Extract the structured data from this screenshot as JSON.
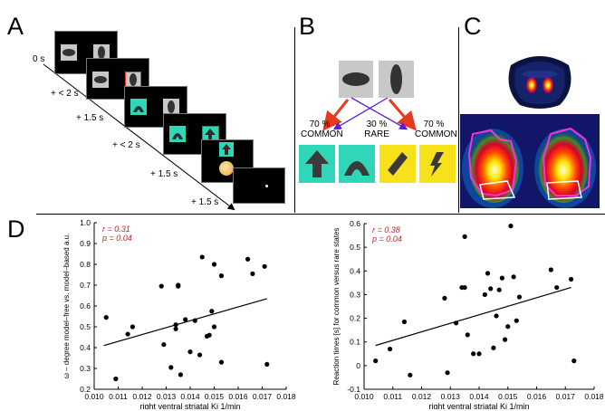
{
  "panels": {
    "a": "A",
    "b": "B",
    "c": "C",
    "d": "D"
  },
  "timeline": [
    "0 s",
    "+ < 2 s",
    "+ 1.5 s",
    "+ < 2 s",
    "+ 1.5 s",
    "+ 1.5 s"
  ],
  "panel_b": {
    "left_pct": "70 %",
    "left_label": "COMMON",
    "mid_pct": "30 %",
    "mid_label": "RARE",
    "right_pct": "70 %",
    "right_label": "COMMON"
  },
  "colors": {
    "teal": "#2fd6b8",
    "yellow": "#f7e11b",
    "red_arrow": "#e8391d",
    "blue_arrow": "#5a1fd6",
    "annotation": "#c0282d"
  },
  "chart_data": [
    {
      "type": "scatter",
      "xlabel": "right ventral striatal Ki 1/min",
      "ylabel": "ω – degree model–free vs. model–based a.u.",
      "annotation_r": "r = 0.31",
      "annotation_p": "p = 0.04",
      "xlim": [
        0.01,
        0.018
      ],
      "ylim": [
        0.2,
        1.0
      ],
      "xticks": [
        "0.010",
        "0.011",
        "0.012",
        "0.013",
        "0.014",
        "0.015",
        "0.016",
        "0.017",
        "0.018"
      ],
      "yticks": [
        "0.2",
        "0.3",
        "0.4",
        "0.5",
        "0.6",
        "0.7",
        "0.8",
        "0.9",
        "1.0"
      ],
      "points": [
        [
          0.0105,
          0.545
        ],
        [
          0.0109,
          0.25
        ],
        [
          0.0114,
          0.465
        ],
        [
          0.0116,
          0.5
        ],
        [
          0.0128,
          0.695
        ],
        [
          0.0129,
          0.415
        ],
        [
          0.0132,
          0.305
        ],
        [
          0.0134,
          0.49
        ],
        [
          0.0134,
          0.51
        ],
        [
          0.0135,
          0.7
        ],
        [
          0.0135,
          0.695
        ],
        [
          0.0136,
          0.27
        ],
        [
          0.0138,
          0.535
        ],
        [
          0.014,
          0.38
        ],
        [
          0.0142,
          0.53
        ],
        [
          0.0144,
          0.365
        ],
        [
          0.0145,
          0.835
        ],
        [
          0.0147,
          0.455
        ],
        [
          0.0148,
          0.46
        ],
        [
          0.0149,
          0.575
        ],
        [
          0.015,
          0.5
        ],
        [
          0.015,
          0.8
        ],
        [
          0.0153,
          0.745
        ],
        [
          0.0153,
          0.33
        ],
        [
          0.0164,
          0.825
        ],
        [
          0.0166,
          0.755
        ],
        [
          0.0171,
          0.79
        ],
        [
          0.0172,
          0.32
        ]
      ],
      "regression": [
        [
          0.0104,
          0.41
        ],
        [
          0.0172,
          0.635
        ]
      ]
    },
    {
      "type": "scatter",
      "xlabel": "right ventral striatal Ki 1/min",
      "ylabel": "Reaction times [s] for common versus rare states",
      "annotation_r": "r = 0.38",
      "annotation_p": "p = 0.04",
      "xlim": [
        0.01,
        0.018
      ],
      "ylim": [
        -0.1,
        0.6
      ],
      "xticks": [
        "0.010",
        "0.011",
        "0.012",
        "0.013",
        "0.014",
        "0.015",
        "0.016",
        "0.017",
        "0.018"
      ],
      "yticks": [
        "-0.1",
        "0",
        "0.1",
        "0.2",
        "0.3",
        "0.4",
        "0.5",
        "0.6"
      ],
      "points": [
        [
          0.0104,
          0.02
        ],
        [
          0.0109,
          0.07
        ],
        [
          0.0114,
          0.185
        ],
        [
          0.0116,
          -0.04
        ],
        [
          0.0128,
          0.285
        ],
        [
          0.0129,
          -0.03
        ],
        [
          0.0132,
          0.18
        ],
        [
          0.0134,
          0.33
        ],
        [
          0.0135,
          0.545
        ],
        [
          0.0135,
          0.33
        ],
        [
          0.0136,
          0.13
        ],
        [
          0.0138,
          0.05
        ],
        [
          0.014,
          0.05
        ],
        [
          0.0142,
          0.3
        ],
        [
          0.0143,
          0.39
        ],
        [
          0.0144,
          0.325
        ],
        [
          0.0145,
          0.075
        ],
        [
          0.0146,
          0.21
        ],
        [
          0.0147,
          0.32
        ],
        [
          0.0148,
          0.37
        ],
        [
          0.0149,
          0.11
        ],
        [
          0.015,
          0.165
        ],
        [
          0.0151,
          0.59
        ],
        [
          0.0152,
          0.375
        ],
        [
          0.0153,
          0.19
        ],
        [
          0.0154,
          0.29
        ],
        [
          0.0165,
          0.405
        ],
        [
          0.0167,
          0.33
        ],
        [
          0.0172,
          0.365
        ],
        [
          0.0173,
          0.02
        ]
      ],
      "regression": [
        [
          0.0104,
          0.085
        ],
        [
          0.0172,
          0.33
        ]
      ]
    }
  ]
}
